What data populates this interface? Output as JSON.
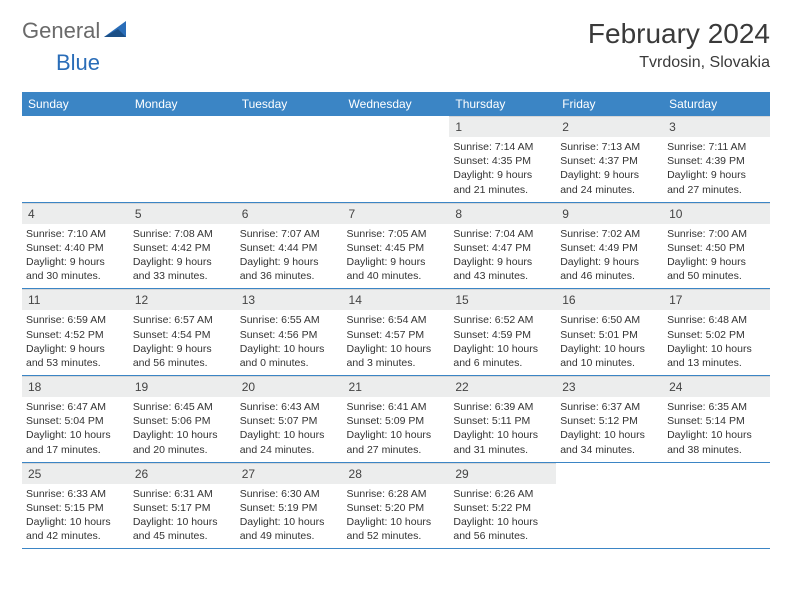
{
  "logo": {
    "general": "General",
    "blue": "Blue"
  },
  "title": "February 2024",
  "location": "Tvrdosin, Slovakia",
  "colors": {
    "header_bg": "#3b85c5",
    "header_fg": "#ffffff",
    "daynum_bg": "#eceded",
    "border": "#3b85c5",
    "logo_general": "#6a6a6a",
    "logo_blue": "#2a6db8"
  },
  "weekdays": [
    "Sunday",
    "Monday",
    "Tuesday",
    "Wednesday",
    "Thursday",
    "Friday",
    "Saturday"
  ],
  "weeks": [
    [
      null,
      null,
      null,
      null,
      {
        "n": "1",
        "sunrise": "7:14 AM",
        "sunset": "4:35 PM",
        "daylight": "9 hours and 21 minutes."
      },
      {
        "n": "2",
        "sunrise": "7:13 AM",
        "sunset": "4:37 PM",
        "daylight": "9 hours and 24 minutes."
      },
      {
        "n": "3",
        "sunrise": "7:11 AM",
        "sunset": "4:39 PM",
        "daylight": "9 hours and 27 minutes."
      }
    ],
    [
      {
        "n": "4",
        "sunrise": "7:10 AM",
        "sunset": "4:40 PM",
        "daylight": "9 hours and 30 minutes."
      },
      {
        "n": "5",
        "sunrise": "7:08 AM",
        "sunset": "4:42 PM",
        "daylight": "9 hours and 33 minutes."
      },
      {
        "n": "6",
        "sunrise": "7:07 AM",
        "sunset": "4:44 PM",
        "daylight": "9 hours and 36 minutes."
      },
      {
        "n": "7",
        "sunrise": "7:05 AM",
        "sunset": "4:45 PM",
        "daylight": "9 hours and 40 minutes."
      },
      {
        "n": "8",
        "sunrise": "7:04 AM",
        "sunset": "4:47 PM",
        "daylight": "9 hours and 43 minutes."
      },
      {
        "n": "9",
        "sunrise": "7:02 AM",
        "sunset": "4:49 PM",
        "daylight": "9 hours and 46 minutes."
      },
      {
        "n": "10",
        "sunrise": "7:00 AM",
        "sunset": "4:50 PM",
        "daylight": "9 hours and 50 minutes."
      }
    ],
    [
      {
        "n": "11",
        "sunrise": "6:59 AM",
        "sunset": "4:52 PM",
        "daylight": "9 hours and 53 minutes."
      },
      {
        "n": "12",
        "sunrise": "6:57 AM",
        "sunset": "4:54 PM",
        "daylight": "9 hours and 56 minutes."
      },
      {
        "n": "13",
        "sunrise": "6:55 AM",
        "sunset": "4:56 PM",
        "daylight": "10 hours and 0 minutes."
      },
      {
        "n": "14",
        "sunrise": "6:54 AM",
        "sunset": "4:57 PM",
        "daylight": "10 hours and 3 minutes."
      },
      {
        "n": "15",
        "sunrise": "6:52 AM",
        "sunset": "4:59 PM",
        "daylight": "10 hours and 6 minutes."
      },
      {
        "n": "16",
        "sunrise": "6:50 AM",
        "sunset": "5:01 PM",
        "daylight": "10 hours and 10 minutes."
      },
      {
        "n": "17",
        "sunrise": "6:48 AM",
        "sunset": "5:02 PM",
        "daylight": "10 hours and 13 minutes."
      }
    ],
    [
      {
        "n": "18",
        "sunrise": "6:47 AM",
        "sunset": "5:04 PM",
        "daylight": "10 hours and 17 minutes."
      },
      {
        "n": "19",
        "sunrise": "6:45 AM",
        "sunset": "5:06 PM",
        "daylight": "10 hours and 20 minutes."
      },
      {
        "n": "20",
        "sunrise": "6:43 AM",
        "sunset": "5:07 PM",
        "daylight": "10 hours and 24 minutes."
      },
      {
        "n": "21",
        "sunrise": "6:41 AM",
        "sunset": "5:09 PM",
        "daylight": "10 hours and 27 minutes."
      },
      {
        "n": "22",
        "sunrise": "6:39 AM",
        "sunset": "5:11 PM",
        "daylight": "10 hours and 31 minutes."
      },
      {
        "n": "23",
        "sunrise": "6:37 AM",
        "sunset": "5:12 PM",
        "daylight": "10 hours and 34 minutes."
      },
      {
        "n": "24",
        "sunrise": "6:35 AM",
        "sunset": "5:14 PM",
        "daylight": "10 hours and 38 minutes."
      }
    ],
    [
      {
        "n": "25",
        "sunrise": "6:33 AM",
        "sunset": "5:15 PM",
        "daylight": "10 hours and 42 minutes."
      },
      {
        "n": "26",
        "sunrise": "6:31 AM",
        "sunset": "5:17 PM",
        "daylight": "10 hours and 45 minutes."
      },
      {
        "n": "27",
        "sunrise": "6:30 AM",
        "sunset": "5:19 PM",
        "daylight": "10 hours and 49 minutes."
      },
      {
        "n": "28",
        "sunrise": "6:28 AM",
        "sunset": "5:20 PM",
        "daylight": "10 hours and 52 minutes."
      },
      {
        "n": "29",
        "sunrise": "6:26 AM",
        "sunset": "5:22 PM",
        "daylight": "10 hours and 56 minutes."
      },
      null,
      null
    ]
  ],
  "labels": {
    "sunrise": "Sunrise:",
    "sunset": "Sunset:",
    "daylight": "Daylight:"
  }
}
